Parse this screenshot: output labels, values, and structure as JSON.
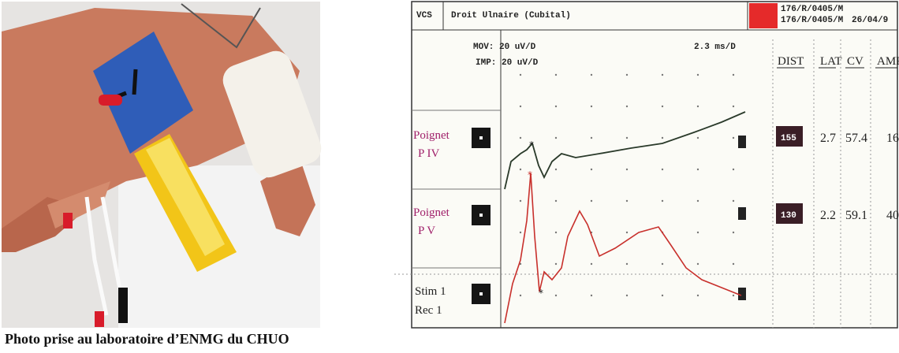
{
  "caption": "Photo prise au laboratoire d’ENMG du CHUO",
  "screen": {
    "code": "VCS",
    "title": "Droit Ulnaire (Cubital)",
    "patient": "176/R/0405/M",
    "date": "26/04/9",
    "settings": [
      "MOV: 20 uV/D",
      "IMP: 20 uV/D"
    ],
    "timebase": "2.3 ms/D",
    "columns": [
      "DIST",
      "LAT",
      "CV",
      "AMP"
    ],
    "rows": [
      {
        "site": [
          "Poignet",
          "P IV"
        ],
        "values": [
          "155",
          "2.7",
          "57.4",
          "16"
        ]
      },
      {
        "site": [
          "Poignet",
          "P V"
        ],
        "values": [
          "130",
          "2.2",
          "59.1",
          "40"
        ]
      }
    ],
    "stim": [
      "Stim 1",
      "Rec 1"
    ]
  }
}
